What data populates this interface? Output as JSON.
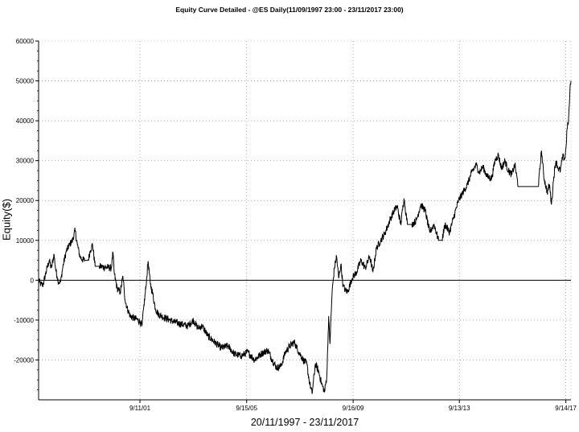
{
  "chart_data": {
    "type": "line",
    "title": "Equity Curve Detailed - @ES Daily(11/09/1997 23:00 - 23/11/2017 23:00)",
    "xlabel": "20/11/1997 - 23/11/2017",
    "ylabel": "Equity($)",
    "x_range": [
      "1997-11-20",
      "2017-11-23"
    ],
    "ylim": [
      -30000,
      60000
    ],
    "y_ticks": [
      60000,
      50000,
      40000,
      30000,
      20000,
      10000,
      0,
      -10000,
      -20000
    ],
    "x_ticks": [
      {
        "label": "9/11/01",
        "date": "2001-09-11"
      },
      {
        "label": "9/15/05",
        "date": "2005-09-15"
      },
      {
        "label": "9/16/09",
        "date": "2009-09-16"
      },
      {
        "label": "9/13/13",
        "date": "2013-09-13"
      },
      {
        "label": "9/14/17",
        "date": "2017-09-14"
      }
    ],
    "grid": true,
    "zero_line": true,
    "series": [
      {
        "color": "#000000",
        "points": [
          [
            "1997-11-20",
            0
          ],
          [
            "1997-12-20",
            -1000
          ],
          [
            "1998-01-20",
            -1200
          ],
          [
            "1998-03-01",
            2000
          ],
          [
            "1998-04-15",
            5000
          ],
          [
            "1998-05-15",
            3000
          ],
          [
            "1998-06-20",
            6500
          ],
          [
            "1998-07-10",
            3000
          ],
          [
            "1998-08-01",
            1000
          ],
          [
            "1998-08-20",
            -500
          ],
          [
            "1998-09-20",
            -300
          ],
          [
            "1998-10-20",
            3500
          ],
          [
            "1998-12-01",
            7000
          ],
          [
            "1999-01-20",
            9000
          ],
          [
            "1999-03-01",
            10000
          ],
          [
            "1999-04-05",
            12500
          ],
          [
            "1999-05-05",
            9000
          ],
          [
            "1999-06-10",
            6000
          ],
          [
            "1999-07-10",
            5200
          ],
          [
            "1999-08-20",
            5000
          ],
          [
            "1999-10-01",
            5000
          ],
          [
            "1999-11-01",
            7500
          ],
          [
            "1999-12-01",
            9000
          ],
          [
            "2000-01-05",
            3500
          ],
          [
            "2000-03-01",
            3500
          ],
          [
            "2000-05-01",
            3300
          ],
          [
            "2000-07-01",
            3200
          ],
          [
            "2000-08-15",
            3000
          ],
          [
            "2000-09-05",
            7000
          ],
          [
            "2000-09-25",
            1500
          ],
          [
            "2000-11-01",
            -2000
          ],
          [
            "2000-12-15",
            -3000
          ],
          [
            "2001-01-20",
            1000
          ],
          [
            "2001-02-20",
            -5000
          ],
          [
            "2001-03-20",
            -7000
          ],
          [
            "2001-05-01",
            -9000
          ],
          [
            "2001-06-20",
            -9500
          ],
          [
            "2001-08-01",
            -9800
          ],
          [
            "2001-09-15",
            -10500
          ],
          [
            "2001-10-10",
            -11500
          ],
          [
            "2001-11-01",
            -7000
          ],
          [
            "2001-12-01",
            -2000
          ],
          [
            "2002-01-01",
            4800
          ],
          [
            "2002-02-01",
            -1000
          ],
          [
            "2002-03-01",
            -3000
          ],
          [
            "2002-04-10",
            -7000
          ],
          [
            "2002-05-20",
            -8500
          ],
          [
            "2002-07-01",
            -9000
          ],
          [
            "2002-09-01",
            -9500
          ],
          [
            "2002-11-01",
            -10000
          ],
          [
            "2003-01-01",
            -10500
          ],
          [
            "2003-04-01",
            -11000
          ],
          [
            "2003-07-01",
            -11500
          ],
          [
            "2003-09-15",
            -10000
          ],
          [
            "2003-11-15",
            -12000
          ],
          [
            "2004-01-15",
            -11500
          ],
          [
            "2004-04-01",
            -14000
          ],
          [
            "2004-07-01",
            -15500
          ],
          [
            "2004-10-01",
            -17000
          ],
          [
            "2005-01-01",
            -16500
          ],
          [
            "2005-04-01",
            -18500
          ],
          [
            "2005-07-01",
            -19000
          ],
          [
            "2005-10-01",
            -18000
          ],
          [
            "2006-01-01",
            -20000
          ],
          [
            "2006-04-01",
            -18500
          ],
          [
            "2006-07-01",
            -17500
          ],
          [
            "2006-09-01",
            -20000
          ],
          [
            "2006-11-01",
            -22000
          ],
          [
            "2007-01-01",
            -21500
          ],
          [
            "2007-03-01",
            -18000
          ],
          [
            "2007-05-01",
            -16500
          ],
          [
            "2007-07-01",
            -15500
          ],
          [
            "2007-09-01",
            -18000
          ],
          [
            "2007-11-01",
            -20000
          ],
          [
            "2007-12-20",
            -21000
          ],
          [
            "2008-01-20",
            -25000
          ],
          [
            "2008-03-01",
            -28500
          ],
          [
            "2008-04-15",
            -21000
          ],
          [
            "2008-06-01",
            -23000
          ],
          [
            "2008-07-10",
            -26000
          ],
          [
            "2008-08-20",
            -28000
          ],
          [
            "2008-09-20",
            -24000
          ],
          [
            "2008-10-15",
            -9000
          ],
          [
            "2008-11-01",
            -16000
          ],
          [
            "2008-12-01",
            -3000
          ],
          [
            "2009-01-01",
            3000
          ],
          [
            "2009-02-01",
            6000
          ],
          [
            "2009-03-01",
            500
          ],
          [
            "2009-04-01",
            4000
          ],
          [
            "2009-05-01",
            -1500
          ],
          [
            "2009-06-01",
            -2500
          ],
          [
            "2009-07-01",
            -3000
          ],
          [
            "2009-09-01",
            500
          ],
          [
            "2009-11-01",
            2000
          ],
          [
            "2010-01-01",
            5000
          ],
          [
            "2010-03-01",
            3000
          ],
          [
            "2010-05-01",
            6000
          ],
          [
            "2010-06-15",
            2000
          ],
          [
            "2010-08-01",
            8000
          ],
          [
            "2010-10-01",
            10000
          ],
          [
            "2010-12-01",
            12000
          ],
          [
            "2011-02-01",
            15000
          ],
          [
            "2011-04-01",
            17500
          ],
          [
            "2011-05-15",
            18500
          ],
          [
            "2011-07-01",
            14000
          ],
          [
            "2011-08-15",
            20500
          ],
          [
            "2011-10-01",
            14000
          ],
          [
            "2011-12-01",
            14000
          ],
          [
            "2012-02-01",
            15000
          ],
          [
            "2012-04-01",
            19000
          ],
          [
            "2012-06-01",
            17500
          ],
          [
            "2012-08-01",
            12000
          ],
          [
            "2012-10-01",
            14000
          ],
          [
            "2012-12-01",
            10000
          ],
          [
            "2013-01-15",
            10000
          ],
          [
            "2013-03-01",
            14000
          ],
          [
            "2013-05-01",
            12000
          ],
          [
            "2013-07-01",
            16000
          ],
          [
            "2013-09-01",
            20000
          ],
          [
            "2013-11-01",
            22000
          ],
          [
            "2014-01-01",
            24000
          ],
          [
            "2014-03-01",
            27000
          ],
          [
            "2014-05-01",
            29000
          ],
          [
            "2014-06-15",
            27000
          ],
          [
            "2014-08-01",
            28500
          ],
          [
            "2014-10-01",
            26000
          ],
          [
            "2014-12-01",
            25500
          ],
          [
            "2015-01-15",
            30000
          ],
          [
            "2015-03-01",
            31500
          ],
          [
            "2015-04-15",
            28000
          ],
          [
            "2015-06-01",
            30000
          ],
          [
            "2015-07-15",
            27500
          ],
          [
            "2015-09-01",
            26500
          ],
          [
            "2015-10-15",
            29000
          ],
          [
            "2015-12-01",
            23500
          ],
          [
            "2016-03-01",
            23500
          ],
          [
            "2016-06-01",
            23500
          ],
          [
            "2016-09-01",
            23500
          ],
          [
            "2016-10-15",
            32500
          ],
          [
            "2016-11-15",
            26000
          ],
          [
            "2017-01-01",
            22000
          ],
          [
            "2017-02-01",
            24000
          ],
          [
            "2017-03-01",
            19000
          ],
          [
            "2017-04-01",
            26000
          ],
          [
            "2017-05-01",
            30000
          ],
          [
            "2017-06-01",
            28000
          ],
          [
            "2017-07-01",
            27500
          ],
          [
            "2017-08-01",
            31000
          ],
          [
            "2017-09-01",
            30500
          ],
          [
            "2017-09-15",
            33000
          ],
          [
            "2017-10-01",
            38000
          ],
          [
            "2017-10-20",
            40000
          ],
          [
            "2017-11-01",
            44000
          ],
          [
            "2017-11-10",
            48000
          ],
          [
            "2017-11-23",
            50000
          ]
        ]
      }
    ]
  }
}
